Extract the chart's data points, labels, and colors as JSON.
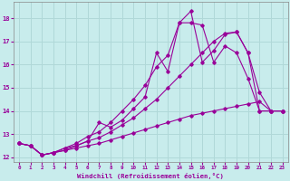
{
  "xlabel": "Windchill (Refroidissement éolien,°C)",
  "bg_color": "#c8ecec",
  "line_color": "#990099",
  "grid_color": "#b0d8d8",
  "xlim": [
    -0.5,
    23.5
  ],
  "ylim": [
    11.8,
    18.7
  ],
  "xticks": [
    0,
    1,
    2,
    3,
    4,
    5,
    6,
    7,
    8,
    9,
    10,
    11,
    12,
    13,
    14,
    15,
    16,
    17,
    18,
    19,
    20,
    21,
    22,
    23
  ],
  "yticks": [
    12,
    13,
    14,
    15,
    16,
    17,
    18
  ],
  "series": [
    {
      "x": [
        0,
        1,
        2,
        3,
        4,
        5,
        6,
        7,
        8,
        9,
        10,
        11,
        12,
        13,
        14,
        15,
        16,
        17,
        18,
        19,
        20,
        21,
        22,
        23
      ],
      "y": [
        12.6,
        12.5,
        12.1,
        12.2,
        12.3,
        12.4,
        12.5,
        12.6,
        12.75,
        12.9,
        13.05,
        13.2,
        13.35,
        13.5,
        13.65,
        13.8,
        13.9,
        14.0,
        14.1,
        14.2,
        14.3,
        14.4,
        14.0,
        14.0
      ]
    },
    {
      "x": [
        0,
        1,
        2,
        3,
        4,
        5,
        6,
        7,
        8,
        9,
        10,
        11,
        12,
        13,
        14,
        15,
        16,
        17,
        18,
        19,
        20,
        21,
        22,
        23
      ],
      "y": [
        12.6,
        12.5,
        12.1,
        12.2,
        12.3,
        12.5,
        12.7,
        12.85,
        13.1,
        13.4,
        13.7,
        14.1,
        14.5,
        15.0,
        15.5,
        16.0,
        16.5,
        17.0,
        17.35,
        17.4,
        16.5,
        14.0,
        14.0,
        14.0
      ]
    },
    {
      "x": [
        0,
        1,
        2,
        3,
        4,
        5,
        6,
        7,
        8,
        9,
        10,
        11,
        12,
        13,
        14,
        15,
        16,
        17,
        18,
        19,
        20,
        21,
        22,
        23
      ],
      "y": [
        12.6,
        12.5,
        12.1,
        12.2,
        12.4,
        12.5,
        12.7,
        13.5,
        13.3,
        13.6,
        14.1,
        14.6,
        16.5,
        15.7,
        17.8,
        17.8,
        17.7,
        16.1,
        16.8,
        16.5,
        15.4,
        14.0,
        14.0,
        14.0
      ]
    },
    {
      "x": [
        0,
        1,
        2,
        3,
        4,
        5,
        6,
        7,
        8,
        9,
        10,
        11,
        12,
        13,
        14,
        15,
        16,
        17,
        18,
        19,
        20,
        21,
        22,
        23
      ],
      "y": [
        12.6,
        12.5,
        12.1,
        12.2,
        12.4,
        12.6,
        12.9,
        13.1,
        13.5,
        14.0,
        14.5,
        15.1,
        15.9,
        16.4,
        17.8,
        18.3,
        16.1,
        16.6,
        17.3,
        17.4,
        16.5,
        14.8,
        14.0,
        14.0
      ]
    }
  ]
}
